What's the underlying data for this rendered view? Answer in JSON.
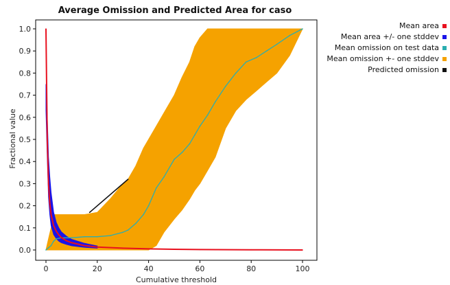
{
  "chart_data": {
    "type": "line",
    "title": "Average Omission and Predicted Area for caso",
    "xlabel": "Cumulative threshold",
    "ylabel": "Fractional value",
    "xlim": [
      0,
      100
    ],
    "ylim": [
      0,
      1
    ],
    "xticks": [
      0,
      20,
      40,
      60,
      80,
      100
    ],
    "yticks": [
      0.0,
      0.1,
      0.2,
      0.3,
      0.4,
      0.5,
      0.6,
      0.7,
      0.8,
      0.9,
      1.0
    ],
    "xtick_labels": [
      "0",
      "20",
      "40",
      "60",
      "80",
      "100"
    ],
    "ytick_labels": [
      "0.0",
      "0.1",
      "0.2",
      "0.3",
      "0.4",
      "0.5",
      "0.6",
      "0.7",
      "0.8",
      "0.9",
      "1.0"
    ],
    "legend_position": "top-right-outside",
    "series": [
      {
        "name": "Mean area",
        "color": "#e8101e",
        "style": "line",
        "x": [
          0,
          0.5,
          1,
          1.5,
          2,
          3,
          4,
          5,
          6,
          8,
          10,
          15,
          20,
          30,
          40,
          50,
          60,
          80,
          100
        ],
        "y": [
          1.0,
          0.5,
          0.3,
          0.21,
          0.16,
          0.11,
          0.085,
          0.068,
          0.056,
          0.042,
          0.033,
          0.02,
          0.013,
          0.008,
          0.005,
          0.003,
          0.002,
          0.001,
          0.0
        ]
      },
      {
        "name": "Mean area +/- one stddev",
        "color": "#1a14e8",
        "style": "band",
        "x": [
          0,
          0.5,
          1,
          1.5,
          2,
          3,
          4,
          5,
          6,
          8,
          10,
          15,
          20
        ],
        "upper": [
          0.75,
          0.6,
          0.42,
          0.33,
          0.26,
          0.17,
          0.125,
          0.1,
          0.082,
          0.062,
          0.048,
          0.03,
          0.018
        ],
        "lower": [
          0.63,
          0.42,
          0.24,
          0.16,
          0.11,
          0.07,
          0.052,
          0.04,
          0.033,
          0.025,
          0.019,
          0.012,
          0.008
        ]
      },
      {
        "name": "Mean omission on test data",
        "color": "#2aaeb0",
        "style": "line",
        "x": [
          0,
          1,
          2,
          3,
          4,
          6,
          10,
          15,
          20,
          25,
          30,
          32,
          35,
          38,
          40,
          43,
          46,
          50,
          53,
          56,
          58,
          60,
          63,
          66,
          70,
          74,
          78,
          82,
          86,
          90,
          95,
          100
        ],
        "y": [
          0.0,
          0.01,
          0.02,
          0.04,
          0.05,
          0.055,
          0.055,
          0.06,
          0.06,
          0.065,
          0.08,
          0.09,
          0.12,
          0.16,
          0.2,
          0.28,
          0.33,
          0.41,
          0.44,
          0.48,
          0.52,
          0.56,
          0.61,
          0.67,
          0.74,
          0.8,
          0.85,
          0.87,
          0.9,
          0.93,
          0.97,
          1.0
        ]
      },
      {
        "name": "Mean omission +- one stddev",
        "color": "#f5a200",
        "style": "band",
        "x": [
          0,
          1,
          2,
          3,
          4,
          6,
          10,
          15,
          20,
          25,
          30,
          32,
          35,
          38,
          40,
          43,
          46,
          50,
          53,
          56,
          58,
          60,
          63,
          66,
          70,
          74,
          78,
          82,
          86,
          90,
          95,
          100
        ],
        "upper": [
          0.0,
          0.05,
          0.1,
          0.16,
          0.16,
          0.16,
          0.16,
          0.16,
          0.17,
          0.23,
          0.3,
          0.32,
          0.38,
          0.46,
          0.5,
          0.56,
          0.62,
          0.7,
          0.78,
          0.85,
          0.92,
          0.96,
          1.0,
          1.0,
          1.0,
          1.0,
          1.0,
          1.0,
          1.0,
          1.0,
          1.0,
          1.0
        ],
        "lower": [
          0.0,
          0.0,
          0.0,
          0.0,
          0.0,
          0.0,
          0.0,
          0.0,
          0.0,
          0.0,
          0.0,
          0.0,
          0.0,
          0.0,
          0.0,
          0.02,
          0.08,
          0.14,
          0.18,
          0.23,
          0.27,
          0.3,
          0.36,
          0.42,
          0.55,
          0.63,
          0.68,
          0.72,
          0.76,
          0.8,
          0.88,
          1.0
        ]
      },
      {
        "name": "Predicted omission",
        "color": "#111111",
        "style": "line",
        "x": [
          17,
          32
        ],
        "y": [
          0.17,
          0.32
        ]
      }
    ],
    "legend_order": [
      "Mean area",
      "Mean area +/- one stddev",
      "Mean omission on test data",
      "Mean omission +- one stddev",
      "Predicted omission"
    ]
  }
}
